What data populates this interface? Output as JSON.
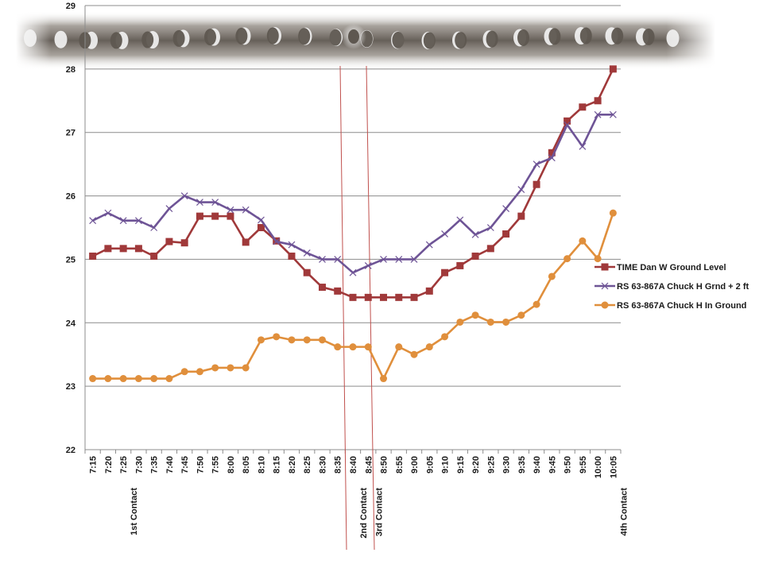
{
  "chart_data": {
    "type": "line",
    "title": "",
    "xlabel": "",
    "ylabel": "",
    "ylim": [
      22,
      29
    ],
    "yticks": [
      "22",
      "23",
      "24",
      "25",
      "26",
      "27",
      "28",
      "29"
    ],
    "grid": "horizontal",
    "legend_position": "right",
    "categories": [
      "7:15",
      "7:20",
      "7:25",
      "7:30",
      "7:35",
      "7:40",
      "7:45",
      "7:50",
      "7:55",
      "8:00",
      "8:05",
      "8:10",
      "8:15",
      "8:20",
      "8:25",
      "8:30",
      "8:35",
      "8:40",
      "8:45",
      "8:50",
      "8:55",
      "9:00",
      "9:05",
      "9:10",
      "9:15",
      "9:20",
      "9:25",
      "9:30",
      "9:35",
      "9:40",
      "9:45",
      "9:50",
      "9:55",
      "10:00",
      "10:05"
    ],
    "category_annotations": [
      {
        "category": "7:25",
        "label": "1st Contact"
      },
      {
        "category": "8:40",
        "label": "2nd Contact"
      },
      {
        "category": "8:45",
        "label": "3rd Contact"
      },
      {
        "category": "10:05",
        "label": "4th Contact"
      }
    ],
    "series": [
      {
        "name": "TIME Dan W Ground Level",
        "color": "#a0393a",
        "marker": "square",
        "values": [
          25.05,
          25.17,
          25.17,
          25.17,
          25.05,
          25.28,
          25.26,
          25.68,
          25.68,
          25.68,
          25.27,
          25.5,
          25.29,
          25.05,
          24.79,
          24.56,
          24.5,
          24.4,
          24.4,
          24.4,
          24.4,
          24.4,
          24.5,
          24.79,
          24.9,
          25.05,
          25.17,
          25.4,
          25.68,
          26.18,
          26.68,
          27.18,
          27.4,
          27.5,
          28.0
        ]
      },
      {
        "name": "RS 63-867A Chuck H Grnd + 2 ft",
        "color": "#6e5496",
        "marker": "x",
        "values": [
          25.61,
          25.73,
          25.61,
          25.61,
          25.5,
          25.8,
          26.0,
          25.9,
          25.9,
          25.78,
          25.78,
          25.62,
          25.28,
          25.23,
          25.1,
          25.0,
          25.0,
          24.79,
          24.9,
          25.0,
          25.0,
          25.0,
          25.23,
          25.4,
          25.62,
          25.39,
          25.5,
          25.8,
          26.1,
          26.5,
          26.6,
          27.12,
          26.78,
          27.28,
          27.28
        ]
      },
      {
        "name": "RS 63-867A Chuck H In Ground",
        "color": "#e08f3c",
        "marker": "circle",
        "values": [
          23.12,
          23.12,
          23.12,
          23.12,
          23.12,
          23.12,
          23.23,
          23.23,
          23.29,
          23.29,
          23.29,
          23.73,
          23.78,
          23.73,
          23.73,
          23.73,
          23.62,
          23.62,
          23.62,
          23.12,
          23.62,
          23.5,
          23.62,
          23.78,
          24.01,
          24.12,
          24.01,
          24.01,
          24.12,
          24.29,
          24.73,
          25.01,
          25.29,
          25.01,
          25.73
        ]
      }
    ]
  },
  "decoration": {
    "banner_icon": "eclipse-sequence-photo-strip"
  }
}
